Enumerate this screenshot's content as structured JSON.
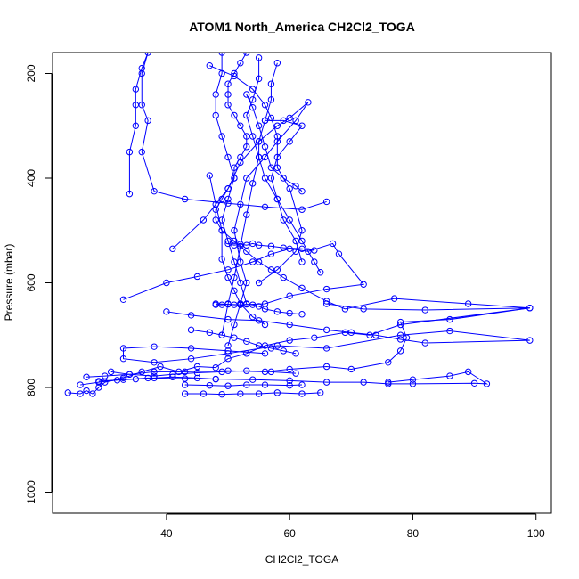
{
  "chart_data": {
    "type": "line",
    "title": "ATOM1 North_America CH2Cl2_TOGA",
    "xlabel": "CH2Cl2_TOGA",
    "ylabel": "Pressure (mbar)",
    "xlim": [
      21.5,
      102.5
    ],
    "ylim": [
      1040,
      160
    ],
    "y_reversed": true,
    "xticks": [
      40,
      60,
      80,
      100
    ],
    "yticks": [
      200,
      400,
      600,
      800,
      1000
    ],
    "grid": false,
    "legend": "none",
    "line_color": "#0000ff",
    "marker": "open-circle",
    "series": [
      {
        "points": [
          [
            24,
            810
          ],
          [
            26,
            812
          ],
          [
            27,
            806
          ],
          [
            28,
            812
          ],
          [
            29,
            800
          ],
          [
            30,
            790
          ],
          [
            33,
            782
          ],
          [
            36,
            770
          ],
          [
            39,
            760
          ],
          [
            42,
            770
          ],
          [
            45,
            760
          ],
          [
            48,
            762
          ],
          [
            50,
            745
          ],
          [
            53,
            735
          ],
          [
            56,
            720
          ],
          [
            60,
            710
          ],
          [
            64,
            705
          ],
          [
            69,
            695
          ],
          [
            73,
            700
          ],
          [
            78,
            680
          ],
          [
            99,
            648
          ],
          [
            89,
            640
          ],
          [
            77,
            630
          ],
          [
            69,
            650
          ],
          [
            66,
            635
          ],
          [
            62,
            610
          ],
          [
            59,
            590
          ],
          [
            57,
            575
          ],
          [
            55,
            560
          ],
          [
            53,
            540
          ],
          [
            51,
            520
          ],
          [
            49,
            500
          ],
          [
            48,
            480
          ],
          [
            48,
            460
          ],
          [
            49,
            440
          ],
          [
            50,
            420
          ],
          [
            51,
            400
          ],
          [
            51,
            380
          ],
          [
            52,
            360
          ],
          [
            53,
            340
          ],
          [
            53,
            320
          ],
          [
            52,
            300
          ],
          [
            51,
            280
          ],
          [
            50,
            260
          ],
          [
            50,
            240
          ],
          [
            50,
            220
          ],
          [
            51,
            200
          ],
          [
            52,
            180
          ],
          [
            53,
            160
          ]
        ]
      },
      {
        "points": [
          [
            34,
            430
          ],
          [
            34,
            350
          ],
          [
            35,
            300
          ],
          [
            35,
            260
          ],
          [
            35,
            230
          ],
          [
            36,
            190
          ],
          [
            37,
            160
          ],
          [
            36,
            200
          ],
          [
            36,
            260
          ],
          [
            37,
            290
          ],
          [
            36,
            350
          ],
          [
            38,
            425
          ],
          [
            43,
            440
          ],
          [
            50,
            448
          ],
          [
            56,
            455
          ],
          [
            62,
            460
          ],
          [
            66,
            445
          ]
        ]
      },
      {
        "points": [
          [
            33,
            632
          ],
          [
            40,
            600
          ],
          [
            45,
            588
          ],
          [
            50,
            575
          ],
          [
            54,
            560
          ],
          [
            57,
            545
          ],
          [
            60,
            535
          ],
          [
            63,
            540
          ],
          [
            67,
            525
          ],
          [
            68,
            545
          ],
          [
            72,
            603
          ],
          [
            66,
            612
          ],
          [
            60,
            625
          ],
          [
            56,
            640
          ],
          [
            52,
            642
          ],
          [
            48,
            640
          ]
        ]
      },
      {
        "points": [
          [
            40,
            655
          ],
          [
            44,
            662
          ],
          [
            50,
            670
          ],
          [
            55,
            672
          ],
          [
            60,
            680
          ],
          [
            66,
            690
          ],
          [
            70,
            695
          ],
          [
            74,
            700
          ],
          [
            78,
            708
          ],
          [
            82,
            715
          ],
          [
            99,
            710
          ],
          [
            86,
            692
          ],
          [
            78,
            700
          ],
          [
            66,
            725
          ],
          [
            58,
            720
          ],
          [
            50,
            735
          ],
          [
            44,
            745
          ],
          [
            38,
            752
          ],
          [
            33,
            745
          ],
          [
            33,
            725
          ],
          [
            38,
            722
          ],
          [
            44,
            725
          ],
          [
            50,
            730
          ],
          [
            56,
            735
          ]
        ]
      },
      {
        "points": [
          [
            27,
            780
          ],
          [
            30,
            778
          ],
          [
            34,
            775
          ],
          [
            38,
            770
          ],
          [
            43,
            770
          ],
          [
            50,
            768
          ],
          [
            56,
            770
          ],
          [
            60,
            765
          ],
          [
            66,
            760
          ],
          [
            70,
            765
          ],
          [
            76,
            752
          ],
          [
            78,
            730
          ],
          [
            79,
            705
          ],
          [
            78,
            675
          ],
          [
            86,
            670
          ],
          [
            99,
            648
          ],
          [
            82,
            652
          ],
          [
            72,
            650
          ],
          [
            66,
            640
          ]
        ]
      },
      {
        "points": [
          [
            29,
            788
          ],
          [
            33,
            785
          ],
          [
            37,
            782
          ],
          [
            43,
            783
          ],
          [
            48,
            784
          ],
          [
            54,
            785
          ],
          [
            60,
            787
          ],
          [
            66,
            790
          ],
          [
            72,
            790
          ],
          [
            76,
            793
          ],
          [
            80,
            793
          ],
          [
            90,
            792
          ],
          [
            92,
            793
          ],
          [
            89,
            770
          ],
          [
            86,
            778
          ],
          [
            80,
            785
          ],
          [
            76,
            790
          ]
        ]
      },
      {
        "points": [
          [
            43,
            812
          ],
          [
            46,
            812
          ],
          [
            49,
            813
          ],
          [
            52,
            812
          ],
          [
            55,
            812
          ],
          [
            58,
            810
          ],
          [
            62,
            812
          ],
          [
            65,
            810
          ]
        ]
      },
      {
        "points": [
          [
            43,
            795
          ],
          [
            47,
            796
          ],
          [
            50,
            797
          ],
          [
            53,
            795
          ],
          [
            56,
            795
          ],
          [
            60,
            796
          ],
          [
            62,
            795
          ]
        ]
      },
      {
        "points": [
          [
            41,
            535
          ],
          [
            46,
            480
          ],
          [
            50,
            420
          ],
          [
            52,
            370
          ],
          [
            55,
            330
          ],
          [
            58,
            300
          ],
          [
            60,
            285
          ],
          [
            63,
            255
          ],
          [
            61,
            290
          ],
          [
            58,
            330
          ],
          [
            56,
            360
          ],
          [
            53,
            400
          ],
          [
            52,
            450
          ],
          [
            51,
            500
          ],
          [
            52,
            560
          ],
          [
            53,
            600
          ],
          [
            52,
            640
          ],
          [
            51,
            680
          ],
          [
            50,
            720
          ]
        ]
      },
      {
        "points": [
          [
            47,
            185
          ],
          [
            51,
            205
          ],
          [
            54,
            230
          ],
          [
            56,
            260
          ],
          [
            57,
            285
          ],
          [
            58,
            320
          ],
          [
            58,
            380
          ],
          [
            60,
            420
          ],
          [
            62,
            500
          ],
          [
            61,
            540
          ],
          [
            58,
            575
          ],
          [
            55,
            600
          ]
        ]
      },
      {
        "points": [
          [
            55,
            170
          ],
          [
            55,
            210
          ],
          [
            54,
            250
          ],
          [
            53,
            280
          ],
          [
            54,
            320
          ],
          [
            55,
            360
          ],
          [
            56,
            400
          ],
          [
            58,
            440
          ],
          [
            60,
            480
          ],
          [
            62,
            520
          ],
          [
            64,
            560
          ],
          [
            65,
            580
          ]
        ]
      },
      {
        "points": [
          [
            49,
            160
          ],
          [
            49,
            200
          ],
          [
            48,
            240
          ],
          [
            48,
            280
          ],
          [
            49,
            320
          ],
          [
            50,
            360
          ],
          [
            51,
            400
          ],
          [
            50,
            440
          ],
          [
            49,
            480
          ],
          [
            50,
            520
          ],
          [
            51,
            560
          ],
          [
            52,
            600
          ],
          [
            53,
            640
          ]
        ]
      },
      {
        "points": [
          [
            47,
            395
          ],
          [
            48,
            450
          ],
          [
            49,
            500
          ],
          [
            49,
            555
          ],
          [
            50,
            590
          ],
          [
            51,
            615
          ],
          [
            52,
            640
          ],
          [
            54,
            665
          ],
          [
            56,
            680
          ]
        ]
      },
      {
        "points": [
          [
            58,
            180
          ],
          [
            57,
            220
          ],
          [
            57,
            250
          ],
          [
            56,
            290
          ],
          [
            55,
            330
          ],
          [
            55,
            360
          ],
          [
            54,
            410
          ],
          [
            53,
            470
          ],
          [
            52,
            530
          ],
          [
            51,
            590
          ],
          [
            50,
            640
          ],
          [
            49,
            700
          ]
        ]
      },
      {
        "points": [
          [
            56,
            290
          ],
          [
            59,
            290
          ],
          [
            62,
            300
          ],
          [
            60,
            330
          ],
          [
            58,
            360
          ],
          [
            57,
            400
          ],
          [
            58,
            440
          ],
          [
            59,
            480
          ],
          [
            61,
            520
          ],
          [
            62,
            560
          ]
        ]
      },
      {
        "points": [
          [
            53,
            240
          ],
          [
            54,
            265
          ],
          [
            55,
            300
          ],
          [
            56,
            340
          ],
          [
            57,
            380
          ],
          [
            59,
            400
          ],
          [
            61,
            415
          ],
          [
            62,
            425
          ]
        ]
      },
      {
        "points": [
          [
            50,
            525
          ],
          [
            51,
            528
          ],
          [
            52,
            526
          ],
          [
            53,
            528
          ],
          [
            54,
            525
          ],
          [
            55,
            528
          ],
          [
            57,
            530
          ],
          [
            59,
            533
          ],
          [
            62,
            535
          ],
          [
            64,
            538
          ]
        ]
      },
      {
        "points": [
          [
            48,
            642
          ],
          [
            49,
            642
          ],
          [
            50,
            641
          ],
          [
            51,
            642
          ],
          [
            52,
            642
          ],
          [
            53,
            641
          ],
          [
            54,
            642
          ],
          [
            55,
            645
          ],
          [
            56,
            650
          ],
          [
            58,
            655
          ],
          [
            60,
            658
          ],
          [
            62,
            660
          ]
        ]
      },
      {
        "points": [
          [
            44,
            690
          ],
          [
            47,
            695
          ],
          [
            49,
            700
          ],
          [
            51,
            705
          ],
          [
            53,
            712
          ],
          [
            55,
            720
          ],
          [
            57,
            725
          ],
          [
            59,
            730
          ],
          [
            61,
            735
          ]
        ]
      },
      {
        "points": [
          [
            31,
            770
          ],
          [
            34,
            775
          ],
          [
            38,
            778
          ],
          [
            41,
            775
          ],
          [
            45,
            772
          ],
          [
            49,
            770
          ],
          [
            53,
            768
          ],
          [
            57,
            770
          ],
          [
            61,
            773
          ]
        ]
      },
      {
        "points": [
          [
            26,
            795
          ],
          [
            29,
            790
          ],
          [
            32,
            786
          ],
          [
            35,
            784
          ],
          [
            38,
            782
          ],
          [
            41,
            780
          ],
          [
            45,
            782
          ],
          [
            48,
            784
          ]
        ]
      }
    ]
  }
}
